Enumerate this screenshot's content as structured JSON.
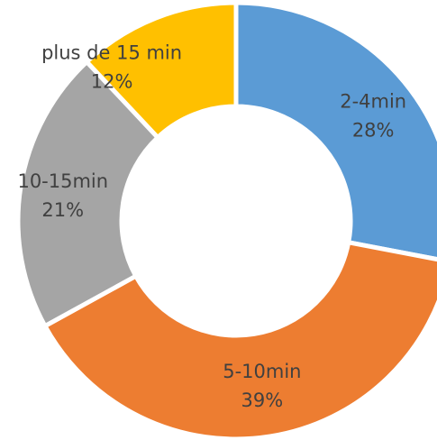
{
  "chart_data": {
    "type": "pie",
    "donut": true,
    "categories": [
      "2-4min",
      "5-10min",
      "10-15min",
      "plus de 15 min"
    ],
    "values": [
      28,
      39,
      21,
      12
    ],
    "value_labels": [
      "28%",
      "39%",
      "21%",
      "12%"
    ],
    "colors": [
      "#5b9bd5",
      "#ed7d31",
      "#a5a5a5",
      "#ffc000"
    ],
    "start": "top",
    "direction": "clockwise",
    "legend": "none"
  }
}
